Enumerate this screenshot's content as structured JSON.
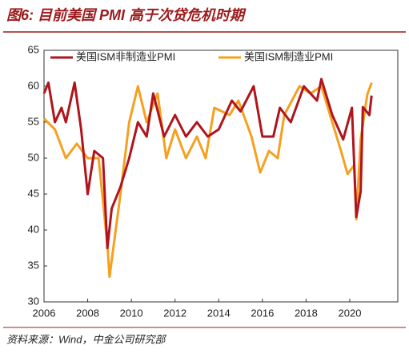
{
  "chart_data": {
    "type": "line",
    "title": "图6: 目前美国 PMI 高于次贷危机时期",
    "source": "资料来源：Wind，中金公司研究部",
    "legend": "top-left",
    "grid": false,
    "series": [
      {
        "name": "美国ISM非制造业PMI",
        "color": "#b0141c",
        "x": [
          2006.0,
          2006.2,
          2006.5,
          2006.8,
          2007.0,
          2007.4,
          2007.7,
          2008.0,
          2008.3,
          2008.7,
          2008.9,
          2009.1,
          2009.5,
          2009.9,
          2010.3,
          2010.7,
          2011.0,
          2011.5,
          2012.0,
          2012.5,
          2013.0,
          2013.5,
          2014.0,
          2014.6,
          2015.0,
          2015.6,
          2016.0,
          2016.5,
          2016.8,
          2017.3,
          2017.9,
          2018.5,
          2018.7,
          2019.2,
          2019.7,
          2020.1,
          2020.3,
          2020.5,
          2020.6,
          2020.9,
          2021.0
        ],
        "values": [
          59,
          60.5,
          55,
          57,
          55,
          60.5,
          54,
          45,
          51,
          50,
          37.5,
          43,
          46,
          50,
          55,
          53,
          59,
          53,
          56,
          53,
          55,
          53,
          54,
          58,
          56.5,
          60,
          53,
          53,
          57,
          55,
          60,
          58,
          61,
          56,
          52.6,
          57,
          41.8,
          45.4,
          57.1,
          56,
          58.7
        ]
      },
      {
        "name": "美国ISM制造业PMI",
        "color": "#f5a01f",
        "x": [
          2006.0,
          2006.5,
          2007.0,
          2007.5,
          2008.0,
          2008.5,
          2008.9,
          2009.0,
          2009.5,
          2009.9,
          2010.3,
          2010.7,
          2011.2,
          2011.6,
          2012.0,
          2012.5,
          2013.0,
          2013.4,
          2013.8,
          2014.5,
          2014.9,
          2015.5,
          2015.9,
          2016.3,
          2016.7,
          2017.0,
          2017.7,
          2018.2,
          2018.7,
          2019.2,
          2019.6,
          2019.9,
          2020.2,
          2020.3,
          2020.5,
          2020.8,
          2021.0
        ],
        "values": [
          55.5,
          54,
          50,
          52,
          50,
          50,
          38,
          33.5,
          45,
          55,
          60,
          55,
          59,
          50,
          54,
          50,
          53,
          50,
          57,
          56,
          58,
          53,
          48,
          51,
          50,
          56,
          60,
          59,
          60,
          55,
          51,
          47.8,
          49,
          41.5,
          52.6,
          58.8,
          60.5
        ]
      }
    ],
    "xlim": [
      2006,
      2022.2
    ],
    "xticks": [
      2006,
      2008,
      2010,
      2012,
      2014,
      2016,
      2018,
      2020
    ],
    "ylim": [
      30,
      65
    ],
    "yticks": [
      30,
      35,
      40,
      45,
      50,
      55,
      60,
      65
    ]
  }
}
